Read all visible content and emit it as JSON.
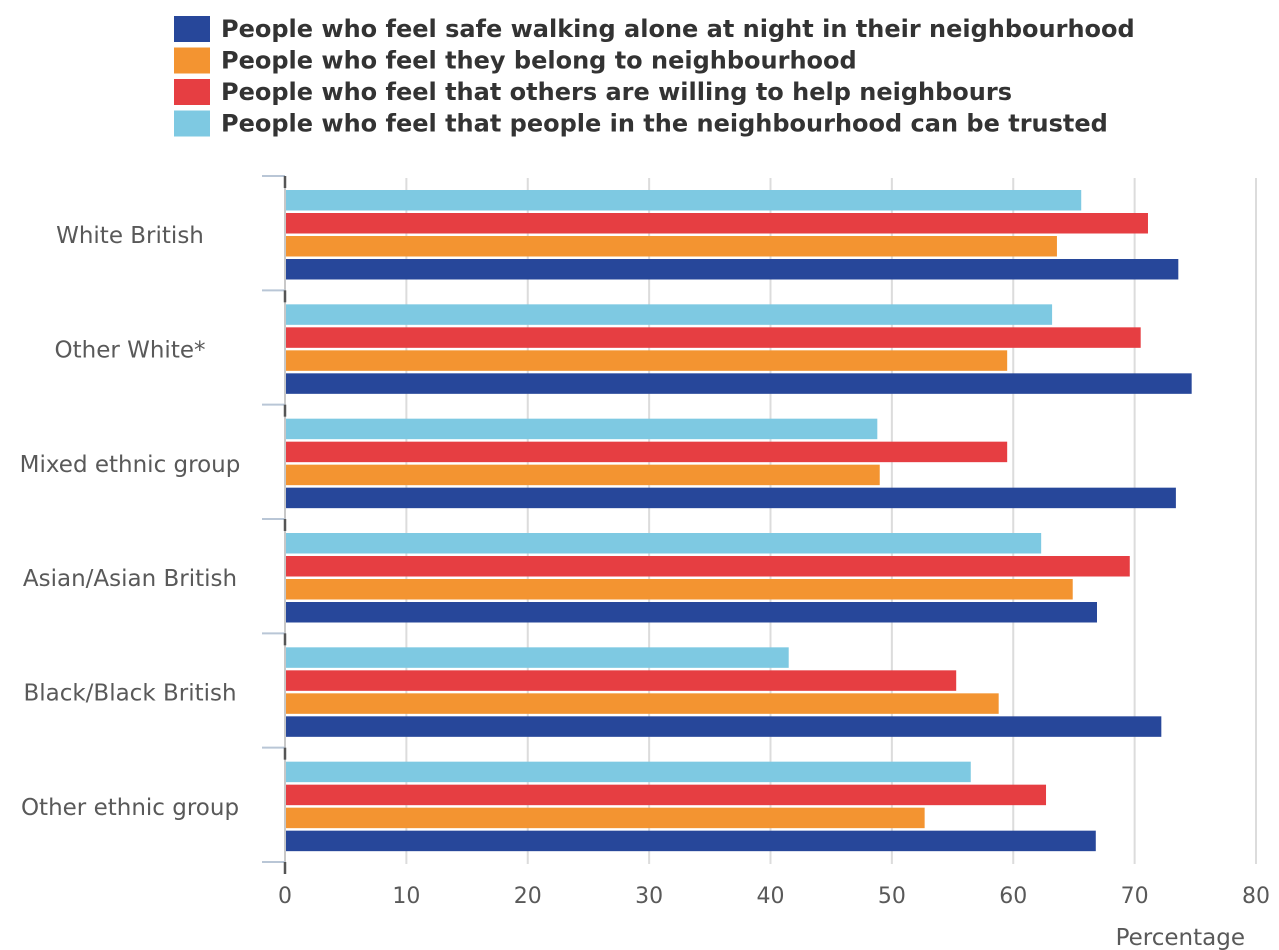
{
  "chart_data": {
    "type": "bar",
    "orientation": "horizontal",
    "categories": [
      "White British",
      "Other White*",
      "Mixed ethnic group",
      "Asian/Asian British",
      "Black/Black British",
      "Other ethnic group"
    ],
    "series": [
      {
        "name": "People who feel safe walking alone at night in their neighbourhood",
        "color": "#27479a",
        "values": [
          73.6,
          74.7,
          73.4,
          66.9,
          72.2,
          66.8
        ]
      },
      {
        "name": "People who feel they belong to neighbourhood",
        "color": "#f39431",
        "values": [
          63.6,
          59.5,
          49.0,
          64.9,
          58.8,
          52.7
        ]
      },
      {
        "name": "People who feel that others are willing to help neighbours",
        "color": "#e63e42",
        "values": [
          71.1,
          70.5,
          59.5,
          69.6,
          55.3,
          62.7
        ]
      },
      {
        "name": "People who feel that people in the neighbourhood can be trusted",
        "color": "#7ec9e2",
        "values": [
          65.6,
          63.2,
          48.8,
          62.3,
          41.5,
          56.5
        ]
      }
    ],
    "xlabel": "Percentage",
    "xlim": [
      0,
      80
    ],
    "xticks": [
      0,
      10,
      20,
      30,
      40,
      50,
      60,
      70,
      80
    ],
    "grid": true,
    "legend_position": "top"
  }
}
